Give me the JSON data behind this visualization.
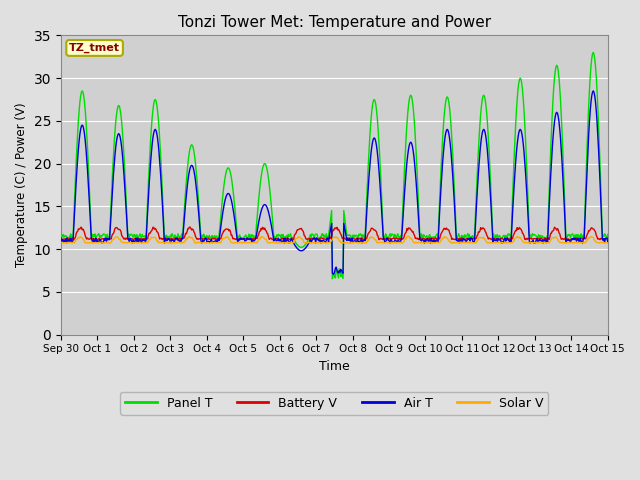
{
  "title": "Tonzi Tower Met: Temperature and Power",
  "xlabel": "Time",
  "ylabel": "Temperature (C) / Power (V)",
  "ylim": [
    0,
    35
  ],
  "yticks": [
    0,
    5,
    10,
    15,
    20,
    25,
    30,
    35
  ],
  "annotation": "TZ_tmet",
  "background_color": "#e0e0e0",
  "plot_bg_color": "#d0d0d0",
  "legend_labels": [
    "Panel T",
    "Battery V",
    "Air T",
    "Solar V"
  ],
  "line_colors": [
    "#00dd00",
    "#dd0000",
    "#0000dd",
    "#ffaa00"
  ],
  "x_tick_labels": [
    "Sep 30",
    "Oct 1",
    "Oct 2",
    "Oct 3",
    "Oct 4",
    "Oct 5",
    "Oct 6",
    "Oct 7",
    "Oct 8",
    "Oct 9",
    "Oct 10",
    "Oct 11",
    "Oct 12",
    "Oct 13",
    "Oct 14",
    "Oct 15"
  ],
  "x_tick_positions": [
    0,
    1,
    2,
    3,
    4,
    5,
    6,
    7,
    8,
    9,
    10,
    11,
    12,
    13,
    14,
    15
  ]
}
